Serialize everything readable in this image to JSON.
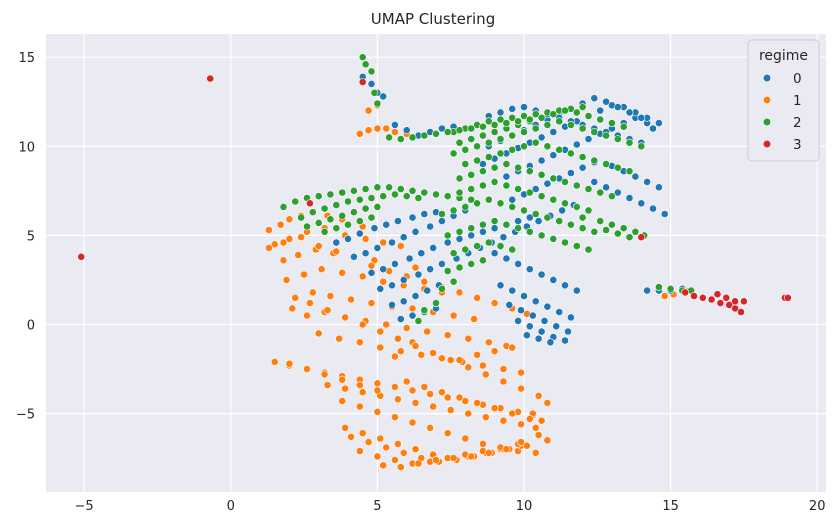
{
  "chart_data": {
    "type": "scatter",
    "title": "UMAP Clustering",
    "xlabel": "",
    "ylabel": "",
    "xlim": [
      -6.3,
      20.3
    ],
    "ylim": [
      -9.4,
      16.3
    ],
    "xticks": [
      -5,
      0,
      5,
      10,
      15,
      20
    ],
    "yticks": [
      -5,
      0,
      5,
      10,
      15
    ],
    "grid": true,
    "legend": {
      "title": "regime",
      "placement": "top-right",
      "entries": [
        "0",
        "1",
        "2",
        "3"
      ]
    },
    "colors": {
      "0": "#1f77b4",
      "1": "#ff7f0e",
      "2": "#2ca02c",
      "3": "#d62728"
    },
    "series": [
      {
        "name": "1",
        "color": "#ff7f0e",
        "x": [
          1.3,
          1.7,
          2.0,
          2.4,
          2.8,
          3.3,
          3.8,
          4.5,
          1.5,
          2.0,
          2.6,
          3.2,
          3.9,
          4.6,
          5.2,
          5.8,
          1.8,
          2.3,
          2.9,
          3.5,
          4.2,
          4.9,
          5.6,
          6.3,
          1.9,
          2.5,
          3.1,
          3.8,
          4.5,
          5.2,
          5.9,
          6.6,
          7.2,
          2.2,
          2.8,
          3.4,
          4.1,
          4.8,
          5.5,
          6.2,
          6.9,
          7.6,
          8.3,
          2.6,
          3.2,
          3.9,
          4.6,
          5.3,
          6.0,
          6.7,
          7.4,
          8.1,
          8.8,
          9.4,
          3.0,
          3.7,
          4.4,
          5.1,
          5.8,
          6.5,
          7.2,
          7.9,
          8.6,
          9.3,
          9.9,
          1.5,
          2.0,
          2.6,
          3.2,
          3.8,
          4.4,
          5.0,
          5.6,
          6.2,
          6.8,
          7.4,
          8.0,
          8.6,
          9.2,
          9.8,
          10.3,
          3.3,
          3.9,
          4.5,
          5.1,
          5.7,
          6.3,
          6.9,
          7.5,
          8.1,
          8.7,
          9.3,
          9.9,
          10.4,
          3.8,
          4.4,
          5.0,
          5.6,
          6.2,
          6.8,
          7.4,
          8.0,
          8.6,
          9.2,
          9.8,
          10.4,
          10.8,
          3.9,
          4.5,
          5.1,
          5.7,
          6.3,
          6.9,
          7.5,
          8.1,
          8.7,
          9.3,
          9.9,
          10.5,
          4.1,
          4.7,
          5.3,
          5.9,
          6.5,
          7.1,
          7.7,
          8.3,
          8.9,
          9.5,
          10.1,
          10.6,
          4.4,
          5.0,
          5.6,
          6.2,
          6.8,
          7.4,
          8.0,
          8.6,
          9.2,
          9.8,
          10.3,
          5.2,
          5.8,
          6.4,
          7.0,
          7.6,
          8.2,
          8.8,
          9.4,
          9.9,
          5.6,
          6.2,
          7.8,
          8.4,
          9.0,
          9.6,
          2.0,
          2.6,
          3.2,
          3.8,
          4.4,
          5.0,
          6.0,
          6.6,
          7.2,
          7.8,
          8.4,
          9.0,
          9.6,
          10.2,
          4.4,
          4.7,
          5.0,
          4.7,
          5.0,
          5.3,
          5.6,
          6.0,
          1.3,
          1.8,
          2.4,
          3.0,
          3.6,
          4.2,
          4.8,
          5.4,
          6.0,
          6.6,
          7.2,
          7.8,
          8.4,
          9.0,
          9.6,
          10.1,
          2.1,
          2.7,
          3.3,
          3.9,
          4.5,
          5.1,
          5.7,
          6.3,
          6.9,
          7.5,
          8.1,
          8.7,
          9.3,
          9.9,
          10.5,
          10.8,
          14.8,
          15.1,
          15.5
        ],
        "y": [
          5.3,
          5.6,
          5.9,
          6.1,
          6.3,
          6.1,
          5.9,
          5.5,
          4.5,
          4.8,
          5.2,
          5.4,
          5.0,
          4.8,
          4.6,
          4.4,
          3.6,
          3.9,
          4.2,
          4.0,
          3.8,
          3.6,
          3.4,
          3.2,
          2.5,
          2.8,
          3.1,
          2.9,
          2.7,
          2.4,
          2.2,
          2.0,
          1.8,
          1.5,
          1.8,
          1.6,
          1.4,
          1.2,
          1.0,
          0.9,
          0.7,
          0.5,
          0.3,
          0.5,
          0.7,
          0.4,
          0.2,
          0.0,
          -0.2,
          -0.4,
          -0.6,
          -0.8,
          -1.0,
          -1.2,
          -0.5,
          -0.8,
          -1.0,
          -1.3,
          -1.5,
          -1.7,
          -1.9,
          -2.1,
          -2.3,
          -2.5,
          -2.7,
          -2.1,
          -2.3,
          -2.5,
          -2.7,
          -2.9,
          -3.1,
          -3.3,
          -3.5,
          -3.7,
          -3.9,
          -4.1,
          -4.3,
          -4.5,
          -4.7,
          -4.9,
          -5.1,
          -3.4,
          -3.6,
          -3.8,
          -4.0,
          -4.2,
          -4.4,
          -4.6,
          -4.8,
          -5.0,
          -5.2,
          -5.4,
          -5.6,
          -5.8,
          -4.3,
          -4.6,
          -4.9,
          -5.2,
          -5.5,
          -5.8,
          -6.1,
          -6.4,
          -6.7,
          -7.0,
          -7.1,
          -7.2,
          -6.5,
          -5.8,
          -6.1,
          -6.4,
          -6.7,
          -7.0,
          -7.3,
          -7.5,
          -7.4,
          -7.2,
          -7.0,
          -6.8,
          -6.2,
          -6.3,
          -6.6,
          -6.9,
          -7.2,
          -7.5,
          -7.7,
          -7.6,
          -7.4,
          -7.2,
          -7.0,
          -6.8,
          -5.4,
          -7.1,
          -7.4,
          -7.6,
          -7.8,
          -7.7,
          -7.5,
          -7.3,
          -7.1,
          -6.9,
          -6.7,
          -5.0,
          -7.9,
          -8.0,
          -7.8,
          -7.6,
          -7.5,
          -7.4,
          -7.2,
          -7.0,
          -6.6,
          -1.8,
          -1.0,
          -2.0,
          -1.7,
          -1.5,
          -1.3,
          -2.2,
          -2.5,
          -2.8,
          -3.1,
          -3.4,
          -3.7,
          -3.2,
          -3.5,
          -3.8,
          -4.1,
          -4.4,
          -4.7,
          -5.0,
          -5.3,
          10.7,
          10.9,
          11.0,
          12.0,
          12.3,
          11.0,
          10.8,
          10.7,
          4.3,
          4.6,
          4.9,
          4.4,
          4.1,
          3.8,
          3.3,
          3.0,
          2.7,
          2.4,
          2.1,
          1.8,
          1.5,
          1.2,
          0.9,
          0.6,
          0.9,
          1.2,
          0.8,
          0.4,
          0.0,
          -0.4,
          -0.8,
          -1.2,
          -1.6,
          -2.0,
          -2.4,
          -2.8,
          -3.2,
          -3.6,
          -4.0,
          -4.4,
          1.6,
          1.7,
          1.9
        ]
      },
      {
        "name": "0",
        "color": "#1f77b4",
        "x": [
          3.6,
          4.0,
          4.4,
          4.9,
          5.3,
          5.7,
          6.2,
          6.6,
          7.0,
          4.2,
          4.6,
          5.0,
          5.5,
          5.9,
          6.3,
          6.8,
          7.2,
          7.6,
          8.0,
          4.8,
          5.2,
          5.6,
          6.1,
          6.5,
          6.9,
          7.4,
          7.8,
          8.2,
          8.6,
          9.0,
          9.4,
          9.8,
          10.2,
          5.1,
          5.5,
          5.9,
          6.4,
          6.8,
          7.2,
          7.7,
          8.1,
          8.5,
          8.9,
          9.3,
          9.7,
          10.1,
          10.5,
          10.9,
          11.3,
          11.7,
          5.5,
          5.9,
          6.3,
          6.7,
          7.1,
          9.0,
          9.4,
          9.8,
          10.2,
          10.6,
          11.0,
          11.4,
          11.8,
          5.8,
          6.2,
          6.6,
          7.0,
          9.2,
          9.6,
          10.0,
          10.4,
          10.8,
          11.2,
          11.6,
          9.5,
          9.9,
          10.3,
          10.7,
          11.1,
          11.5,
          9.8,
          10.2,
          10.6,
          11.0,
          11.4,
          10.1,
          10.5,
          10.9,
          9.6,
          10.0,
          10.4,
          10.8,
          11.2,
          11.6,
          12.0,
          12.4,
          9.0,
          9.4,
          9.8,
          10.2,
          10.6,
          11.0,
          11.4,
          11.8,
          12.2,
          12.6,
          13.0,
          13.4,
          13.8,
          14.2,
          8.6,
          9.0,
          9.4,
          9.8,
          10.2,
          10.6,
          11.0,
          11.4,
          11.8,
          12.2,
          12.6,
          13.0,
          13.4,
          13.8,
          14.2,
          14.6,
          8.8,
          9.2,
          9.6,
          10.0,
          10.4,
          10.8,
          11.2,
          11.6,
          12.0,
          12.4,
          12.8,
          13.2,
          13.6,
          14.0,
          14.4,
          8.8,
          9.2,
          9.6,
          10.0,
          10.4,
          10.8,
          11.2,
          11.6,
          12.0,
          12.4,
          12.8,
          13.2,
          13.6,
          14.0,
          12.4,
          12.8,
          13.2,
          13.6,
          14.0,
          14.4,
          14.8,
          13.0,
          13.4,
          13.8,
          14.2,
          14.6,
          4.5,
          4.8,
          5.0,
          5.2,
          5.6,
          6.0,
          6.4,
          6.8,
          7.2,
          7.6,
          14.2,
          14.6,
          15.0,
          15.4
        ],
        "y": [
          4.6,
          4.8,
          5.1,
          5.4,
          5.6,
          5.8,
          6.0,
          6.2,
          6.3,
          3.8,
          4.0,
          4.3,
          4.6,
          4.9,
          5.2,
          5.5,
          5.8,
          6.1,
          6.4,
          2.9,
          3.1,
          3.4,
          3.7,
          4.0,
          4.3,
          4.6,
          4.8,
          5.0,
          5.2,
          5.4,
          5.6,
          5.8,
          6.0,
          2.0,
          2.2,
          2.5,
          2.8,
          3.1,
          3.4,
          3.7,
          4.0,
          4.3,
          4.6,
          4.9,
          5.2,
          5.5,
          5.8,
          6.1,
          6.4,
          6.7,
          1.1,
          1.3,
          1.6,
          1.9,
          2.2,
          4.0,
          3.7,
          3.4,
          3.1,
          2.8,
          2.5,
          2.2,
          1.9,
          0.3,
          0.5,
          0.7,
          0.9,
          2.2,
          1.9,
          1.6,
          1.3,
          1.0,
          0.7,
          0.4,
          1.1,
          0.8,
          0.5,
          0.2,
          -0.1,
          -0.4,
          0.2,
          -0.1,
          -0.4,
          -0.7,
          -0.9,
          -0.6,
          -0.8,
          -1.0,
          7.0,
          7.3,
          7.6,
          7.9,
          8.2,
          8.5,
          8.8,
          9.1,
          8.0,
          8.3,
          8.6,
          8.9,
          9.2,
          9.5,
          9.8,
          10.1,
          10.4,
          10.7,
          11.0,
          11.3,
          11.6,
          11.3,
          9.0,
          9.3,
          9.6,
          9.9,
          10.2,
          10.5,
          10.8,
          11.1,
          11.4,
          11.7,
          12.0,
          12.3,
          12.2,
          11.9,
          11.6,
          11.3,
          10.0,
          10.3,
          10.6,
          10.9,
          11.2,
          11.5,
          11.8,
          12.1,
          12.4,
          12.7,
          12.5,
          12.2,
          11.9,
          11.6,
          11.0,
          11.7,
          11.9,
          12.1,
          12.2,
          12.0,
          11.8,
          11.6,
          11.4,
          11.2,
          11.0,
          10.8,
          10.6,
          10.4,
          10.2,
          8.0,
          7.7,
          7.4,
          7.1,
          6.8,
          6.5,
          6.2,
          8.9,
          8.6,
          8.3,
          8.0,
          7.7,
          13.9,
          13.5,
          13.0,
          12.8,
          11.2,
          10.9,
          10.6,
          10.8,
          11.0,
          11.1,
          1.9,
          1.9,
          1.9,
          2.0
        ]
      },
      {
        "name": "2",
        "color": "#2ca02c",
        "x": [
          1.8,
          2.2,
          2.6,
          3.0,
          3.4,
          3.8,
          4.2,
          4.6,
          5.0,
          5.4,
          5.8,
          6.2,
          6.6,
          7.0,
          7.4,
          7.8,
          8.2,
          2.4,
          2.8,
          3.2,
          3.6,
          4.0,
          4.4,
          4.8,
          5.2,
          5.6,
          6.0,
          6.4,
          2.6,
          3.0,
          3.4,
          3.8,
          4.2,
          4.6,
          5.0,
          3.2,
          3.6,
          4.0,
          4.4,
          4.8,
          7.6,
          8.0,
          8.4,
          8.8,
          9.2,
          9.6,
          10.0,
          10.4,
          10.8,
          11.2,
          11.6,
          12.0,
          7.8,
          8.2,
          8.6,
          9.0,
          9.4,
          9.8,
          10.2,
          10.6,
          11.0,
          11.4,
          11.8,
          12.2,
          12.6,
          13.0,
          13.4,
          7.6,
          8.0,
          8.4,
          8.8,
          9.2,
          9.6,
          10.0,
          10.4,
          10.8,
          11.2,
          11.6,
          12.0,
          12.4,
          12.8,
          13.2,
          13.6,
          14.0,
          8.0,
          8.4,
          8.8,
          9.2,
          9.6,
          10.0,
          10.4,
          10.8,
          11.2,
          11.6,
          12.0,
          12.4,
          12.8,
          13.2,
          13.6,
          7.8,
          8.2,
          8.6,
          9.0,
          9.4,
          9.8,
          10.2,
          10.6,
          11.0,
          11.4,
          11.8,
          12.2,
          12.6,
          13.0,
          7.4,
          7.8,
          8.2,
          8.6,
          9.0,
          9.4,
          9.8,
          10.2,
          10.6,
          11.0,
          11.4,
          11.8,
          12.2,
          7.2,
          7.6,
          8.0,
          8.4,
          8.8,
          9.2,
          9.6,
          10.0,
          10.4,
          10.8,
          11.2,
          11.6,
          12.0,
          12.4,
          12.8,
          13.2,
          13.6,
          7.4,
          7.8,
          8.2,
          8.6,
          9.0,
          9.4,
          9.8,
          10.2,
          10.6,
          11.0,
          11.4,
          11.8,
          12.2,
          7.6,
          8.0,
          8.4,
          8.8,
          9.2,
          9.6,
          7.4,
          7.8,
          8.2,
          8.6,
          7.2,
          7.6,
          7.0,
          6.6,
          6.4,
          12.0,
          12.6,
          13.0,
          13.4,
          13.8,
          14.1,
          4.5,
          4.6,
          4.8,
          4.9,
          5.0,
          5.4,
          5.8,
          6.2,
          6.6,
          7.0,
          7.4,
          7.8,
          8.2,
          8.6,
          9.0,
          9.4,
          9.8,
          10.2,
          14.6,
          15.0,
          15.4,
          15.7
        ],
        "y": [
          6.6,
          6.9,
          7.1,
          7.2,
          7.3,
          7.4,
          7.5,
          7.6,
          7.7,
          7.7,
          7.6,
          7.5,
          7.4,
          7.3,
          7.2,
          7.1,
          7.0,
          6.0,
          6.3,
          6.5,
          6.7,
          6.9,
          7.0,
          7.1,
          7.2,
          7.3,
          7.2,
          7.1,
          5.5,
          5.7,
          5.9,
          6.1,
          6.3,
          6.5,
          6.6,
          5.2,
          5.4,
          5.6,
          5.8,
          6.0,
          10.8,
          11.0,
          11.2,
          11.4,
          11.5,
          11.6,
          11.7,
          11.8,
          11.9,
          12.0,
          12.1,
          12.2,
          10.2,
          10.4,
          10.6,
          10.8,
          11.0,
          11.2,
          11.4,
          11.6,
          11.8,
          12.0,
          11.9,
          11.7,
          11.5,
          11.3,
          11.1,
          9.6,
          9.8,
          10.0,
          10.2,
          10.4,
          10.6,
          10.8,
          11.0,
          11.2,
          11.4,
          11.2,
          11.0,
          10.8,
          10.6,
          10.4,
          10.2,
          10.0,
          9.0,
          9.2,
          9.4,
          9.6,
          9.8,
          10.0,
          10.2,
          10.0,
          9.8,
          9.6,
          9.4,
          9.2,
          9.0,
          8.8,
          8.6,
          8.2,
          8.4,
          8.6,
          8.8,
          9.0,
          8.8,
          8.6,
          8.4,
          8.2,
          8.0,
          7.8,
          7.6,
          7.4,
          7.2,
          7.2,
          7.4,
          7.6,
          7.8,
          8.0,
          7.8,
          7.6,
          7.4,
          7.2,
          7.0,
          6.8,
          6.6,
          6.4,
          6.2,
          6.4,
          6.6,
          6.8,
          7.0,
          6.8,
          6.6,
          6.4,
          6.2,
          6.0,
          5.8,
          5.6,
          5.4,
          5.2,
          5.3,
          5.1,
          4.9,
          5.0,
          5.2,
          5.4,
          5.6,
          5.8,
          5.6,
          5.4,
          5.2,
          5.0,
          4.8,
          4.6,
          4.4,
          4.2,
          4.0,
          4.2,
          4.4,
          4.6,
          4.4,
          4.2,
          3.0,
          3.2,
          3.4,
          3.6,
          2.0,
          2.4,
          1.2,
          0.8,
          0.2,
          6.0,
          5.8,
          5.6,
          5.4,
          5.2,
          5.0,
          15.0,
          14.6,
          14.2,
          13.0,
          12.4,
          10.5,
          10.4,
          10.5,
          10.6,
          10.7,
          10.8,
          10.9,
          11.0,
          11.1,
          11.2,
          11.3,
          11.4,
          11.5,
          2.1,
          2.0,
          1.9,
          1.9
        ]
      },
      {
        "name": "3",
        "color": "#d62728",
        "x": [
          -5.1,
          -0.7,
          2.7,
          14.0,
          4.5,
          15.5,
          15.8,
          16.1,
          16.4,
          16.7,
          17.0,
          17.2,
          17.4,
          16.6,
          16.9,
          17.2,
          17.5,
          18.9,
          19.0
        ],
        "y": [
          3.8,
          13.8,
          6.8,
          4.9,
          13.6,
          1.8,
          1.6,
          1.5,
          1.4,
          1.2,
          1.1,
          0.9,
          0.7,
          1.7,
          1.5,
          1.3,
          1.3,
          1.5,
          1.5
        ]
      }
    ]
  }
}
